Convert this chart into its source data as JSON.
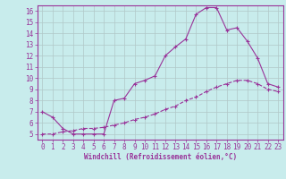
{
  "title": "",
  "xlabel": "Windchill (Refroidissement éolien,°C)",
  "ylabel": "",
  "bg_color": "#c8ecec",
  "line_color": "#993399",
  "grid_color": "#b0c8c8",
  "xlim": [
    -0.5,
    23.5
  ],
  "ylim": [
    4.5,
    16.5
  ],
  "xticks": [
    0,
    1,
    2,
    3,
    4,
    5,
    6,
    7,
    8,
    9,
    10,
    11,
    12,
    13,
    14,
    15,
    16,
    17,
    18,
    19,
    20,
    21,
    22,
    23
  ],
  "yticks": [
    5,
    6,
    7,
    8,
    9,
    10,
    11,
    12,
    13,
    14,
    15,
    16
  ],
  "line1_x": [
    0,
    1,
    2,
    3,
    4,
    5,
    6,
    7,
    8,
    9,
    10,
    11,
    12,
    13,
    14,
    15,
    16,
    17,
    18,
    19,
    20,
    21,
    22,
    23
  ],
  "line1_y": [
    7.0,
    6.5,
    5.5,
    5.0,
    5.0,
    5.0,
    5.0,
    8.0,
    8.2,
    9.5,
    9.8,
    10.2,
    12.0,
    12.8,
    13.5,
    15.7,
    16.3,
    16.3,
    14.3,
    14.5,
    13.3,
    11.8,
    9.5,
    9.2
  ],
  "line2_x": [
    0,
    1,
    2,
    3,
    4,
    5,
    6,
    7,
    8,
    9,
    10,
    11,
    12,
    13,
    14,
    15,
    16,
    17,
    18,
    19,
    20,
    21,
    22,
    23
  ],
  "line2_y": [
    5.0,
    5.0,
    5.2,
    5.3,
    5.5,
    5.5,
    5.6,
    5.8,
    6.0,
    6.3,
    6.5,
    6.8,
    7.2,
    7.5,
    8.0,
    8.3,
    8.8,
    9.2,
    9.5,
    9.8,
    9.8,
    9.5,
    9.0,
    8.8
  ],
  "marker": "+",
  "markersize": 3,
  "linewidth": 0.8,
  "tick_fontsize": 5.5,
  "xlabel_fontsize": 5.5
}
